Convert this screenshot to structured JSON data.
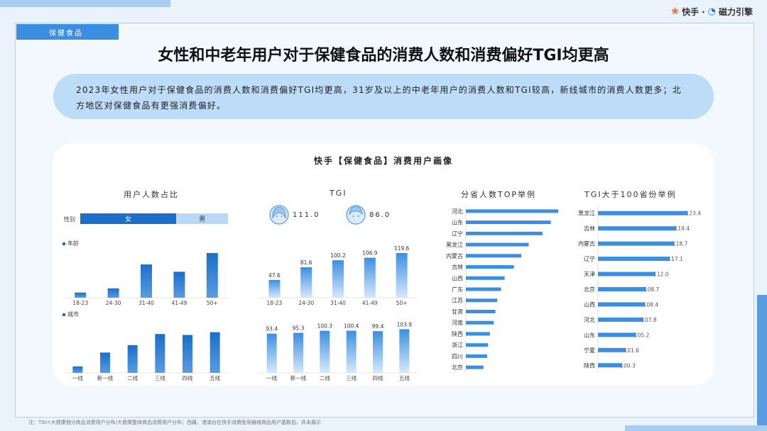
{
  "brand": {
    "kuaishou": "快手",
    "sep": "·",
    "cili": "磁力引擎"
  },
  "tag": "保健食品",
  "title": "女性和中老年用户对于保健食品的消费人数和消费偏好TGI均更高",
  "summary": "2023年女性用户对于保健食品的消费人数和消费偏好TGI均更高，31岁及以上的中老年用户的消费人数和TGI较高，新线城市的消费人数更多；北方地区对保健食品有更强消费偏好。",
  "card_title": "快手【保健食品】消费用户画像",
  "sections": {
    "ratio": "用户人数占比",
    "tgi": "TGI",
    "top": "分省人数TOP举例",
    "tgi100": "TGI大于100省份举例"
  },
  "gender": {
    "label": "性别",
    "female": "女",
    "male": "男",
    "female_share": 0.65,
    "female_tgi": "111.0",
    "male_tgi": "86.0"
  },
  "legend_age": "年龄",
  "legend_city": "城市",
  "footnote": "注：TGI=大健康细分商品消费用户分布/大健康整体商品消费用户分布；西藏、港澳台在快手消费医用器械商品用户基数低，并未展示",
  "colors": {
    "bar": "#1a6fc9",
    "bar_light": "#6fb0ec",
    "accent": "#3c8fe0"
  },
  "chart_data": [
    {
      "type": "bar",
      "name": "age_share",
      "categories": [
        "18-23",
        "24-30",
        "31-40",
        "41-49",
        "50+"
      ],
      "values": [
        5,
        9,
        32,
        25,
        43
      ]
    },
    {
      "type": "bar",
      "name": "age_tgi",
      "categories": [
        "18-23",
        "24-30",
        "31-40",
        "41-49",
        "50+"
      ],
      "values": [
        47.6,
        81.6,
        100.2,
        106.9,
        119.6
      ]
    },
    {
      "type": "bar",
      "name": "city_share",
      "categories": [
        "一线",
        "新一线",
        "二线",
        "三线",
        "四线",
        "五线"
      ],
      "values": [
        7,
        22,
        30,
        42,
        41,
        44
      ]
    },
    {
      "type": "bar",
      "name": "city_tgi",
      "categories": [
        "一线",
        "新一线",
        "二线",
        "三线",
        "四线",
        "五线"
      ],
      "values": [
        93.4,
        95.3,
        100.3,
        100.4,
        99.4,
        103.9
      ]
    },
    {
      "type": "bar",
      "name": "province_top",
      "orientation": "horizontal",
      "categories": [
        "河北",
        "山东",
        "辽宁",
        "黑龙江",
        "内蒙古",
        "吉林",
        "山西",
        "广东",
        "江苏",
        "甘肃",
        "河南",
        "陕西",
        "浙江",
        "四川",
        "北京"
      ],
      "values": [
        100,
        92,
        83,
        68,
        60,
        52,
        42,
        38,
        34,
        32,
        30,
        26,
        24,
        23,
        19
      ]
    },
    {
      "type": "bar",
      "name": "province_tgi",
      "orientation": "horizontal",
      "categories": [
        "黑龙江",
        "吉林",
        "内蒙古",
        "辽宁",
        "天津",
        "北京",
        "山西",
        "河北",
        "山东",
        "宁夏",
        "陕西"
      ],
      "values": [
        123.4,
        119.4,
        118.7,
        117.1,
        112.0,
        108.7,
        108.4,
        107.8,
        105.2,
        101.6,
        100.3
      ],
      "labels": [
        "123.4",
        "119.4",
        "118.7",
        "117.1",
        "112.0",
        "108.7",
        "108.4",
        "107.8",
        "105.2",
        "101.6",
        "100.3"
      ]
    }
  ]
}
